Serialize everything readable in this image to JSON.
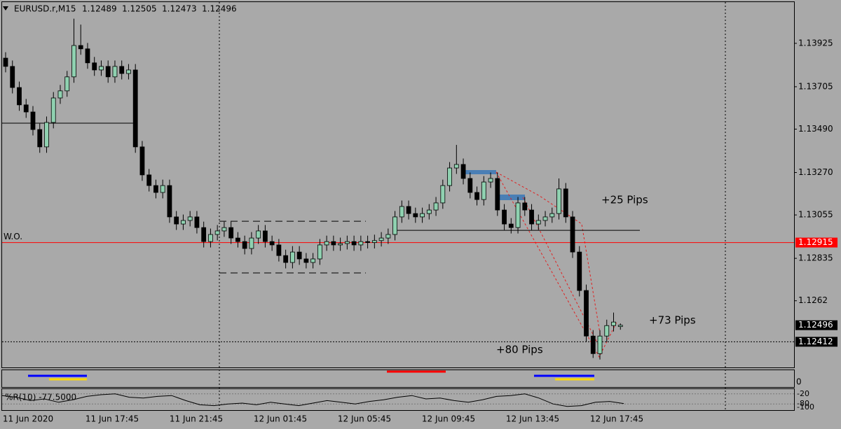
{
  "chart_data": {
    "type": "candlestick",
    "symbol": "EURUSD.r,M15",
    "open": [
      1.1385,
      1.13808,
      1.13701,
      1.13613,
      1.13577,
      1.13488,
      1.134,
      1.13524,
      1.13648,
      1.13684,
      1.13755,
      1.13914,
      1.13897,
      1.13826,
      1.1379,
      1.13808,
      1.13755,
      1.13808,
      1.13772,
      1.1379,
      1.134,
      1.13258,
      1.13204,
      1.13169,
      1.13204,
      1.13045,
      1.13009,
      1.13027,
      1.13045,
      1.12991,
      1.1292,
      1.12956,
      1.12974,
      1.12991,
      1.12938,
      1.1292,
      1.12885,
      1.12938,
      1.12974,
      1.1292,
      1.12903,
      1.12849,
      1.12814,
      1.12867,
      1.12832,
      1.12814,
      1.12832,
      1.12903,
      1.1292,
      1.12903,
      1.1291,
      1.1292,
      1.12903,
      1.1292,
      1.12915,
      1.12925,
      1.12938,
      1.12956,
      1.13045,
      1.13098,
      1.13062,
      1.13045,
      1.13062,
      1.1308,
      1.13116,
      1.13204,
      1.13293,
      1.13311,
      1.1324,
      1.13169,
      1.13133,
      1.13222,
      1.1324,
      1.1308,
      1.13009,
      1.12991,
      1.13116,
      1.1308,
      1.13009,
      1.13027,
      1.13045,
      1.13062,
      1.13187,
      1.13045,
      1.12867,
      1.12672,
      1.12441,
      1.12352,
      1.12441,
      1.12494,
      1.12489
    ],
    "high": [
      1.1388,
      1.13838,
      1.13731,
      1.13643,
      1.13607,
      1.13518,
      1.13554,
      1.13678,
      1.13714,
      1.13785,
      1.1405,
      1.1402,
      1.13927,
      1.13856,
      1.13838,
      1.13838,
      1.13838,
      1.13838,
      1.1382,
      1.1382,
      1.1343,
      1.13288,
      1.13234,
      1.13234,
      1.13234,
      1.13075,
      1.13057,
      1.13075,
      1.13075,
      1.13021,
      1.12986,
      1.13004,
      1.13021,
      1.13021,
      1.12968,
      1.1295,
      1.12968,
      1.13004,
      1.13004,
      1.1295,
      1.12933,
      1.12879,
      1.12897,
      1.12897,
      1.12862,
      1.12862,
      1.12933,
      1.1295,
      1.1295,
      1.1294,
      1.1295,
      1.1295,
      1.1295,
      1.1295,
      1.12955,
      1.12968,
      1.12986,
      1.13075,
      1.13128,
      1.13128,
      1.13092,
      1.13092,
      1.1311,
      1.13146,
      1.13234,
      1.13323,
      1.1341,
      1.13341,
      1.1327,
      1.13199,
      1.13252,
      1.1327,
      1.1327,
      1.1311,
      1.13039,
      1.13146,
      1.13146,
      1.1311,
      1.13057,
      1.13075,
      1.13092,
      1.1324,
      1.13217,
      1.13075,
      1.12897,
      1.12702,
      1.12471,
      1.12471,
      1.12524,
      1.1256,
      1.12505
    ],
    "low": [
      1.13778,
      1.13671,
      1.13583,
      1.13547,
      1.13458,
      1.1337,
      1.1337,
      1.13494,
      1.13618,
      1.13654,
      1.13725,
      1.13867,
      1.13796,
      1.1376,
      1.1376,
      1.13725,
      1.13725,
      1.13742,
      1.13742,
      1.1337,
      1.13228,
      1.13174,
      1.13139,
      1.13139,
      1.13015,
      1.12979,
      1.12979,
      1.12997,
      1.12961,
      1.1289,
      1.1289,
      1.12926,
      1.12944,
      1.12908,
      1.1289,
      1.12855,
      1.12855,
      1.12908,
      1.1289,
      1.12873,
      1.12819,
      1.12784,
      1.12784,
      1.12802,
      1.12784,
      1.12784,
      1.12802,
      1.12873,
      1.12873,
      1.12873,
      1.1288,
      1.12873,
      1.12873,
      1.12885,
      1.12885,
      1.12895,
      1.12908,
      1.12926,
      1.13015,
      1.13032,
      1.13015,
      1.13015,
      1.13032,
      1.1305,
      1.13086,
      1.13174,
      1.13263,
      1.1321,
      1.13139,
      1.13103,
      1.13103,
      1.13192,
      1.1305,
      1.12979,
      1.12961,
      1.12961,
      1.1305,
      1.12979,
      1.12979,
      1.12997,
      1.13015,
      1.13032,
      1.13015,
      1.12837,
      1.12642,
      1.12411,
      1.1233,
      1.12322,
      1.12411,
      1.12464,
      1.12473
    ],
    "close": [
      1.13808,
      1.13701,
      1.13613,
      1.13577,
      1.13488,
      1.134,
      1.13524,
      1.13648,
      1.13684,
      1.13755,
      1.13914,
      1.13897,
      1.13826,
      1.1379,
      1.13808,
      1.13755,
      1.13808,
      1.13772,
      1.1379,
      1.134,
      1.13258,
      1.13204,
      1.13169,
      1.13204,
      1.13045,
      1.13009,
      1.13027,
      1.13045,
      1.12991,
      1.1292,
      1.12956,
      1.12974,
      1.12991,
      1.12938,
      1.1292,
      1.12885,
      1.12938,
      1.12974,
      1.1292,
      1.12903,
      1.12849,
      1.12814,
      1.12867,
      1.12832,
      1.12814,
      1.12832,
      1.12903,
      1.1292,
      1.12903,
      1.1291,
      1.1292,
      1.12903,
      1.1292,
      1.12915,
      1.12925,
      1.12938,
      1.12956,
      1.13045,
      1.13098,
      1.13062,
      1.13045,
      1.13062,
      1.1308,
      1.13116,
      1.13204,
      1.13293,
      1.13311,
      1.1324,
      1.13169,
      1.13133,
      1.13222,
      1.1324,
      1.1308,
      1.13009,
      1.12991,
      1.13116,
      1.1308,
      1.13009,
      1.13027,
      1.13045,
      1.13062,
      1.13187,
      1.13045,
      1.12867,
      1.12672,
      1.12441,
      1.12352,
      1.12441,
      1.12494,
      1.12512,
      1.12496
    ],
    "up_color": "#8fd1b0",
    "down_color": "#000000",
    "ylim": [
      1.12282,
      1.14134
    ],
    "yticks": [
      1.13925,
      1.13705,
      {
        "value": 1.1349,
        "label": "1.13490"
      },
      {
        "value": 1.1327,
        "label": "1.13270"
      },
      1.13055,
      1.12835,
      1.1262
    ],
    "levels": [
      {
        "value": 1.12915,
        "color": "#ff0000",
        "style": "solid",
        "label": "W.O."
      },
      {
        "value": 1.12412,
        "color": "#000000",
        "style": "dotted"
      },
      {
        "value": 1.1352,
        "color": "#000000",
        "style": "solid"
      },
      {
        "value": 1.12977,
        "color": "#000000",
        "style": "solid"
      },
      {
        "value": 1.13023,
        "color": "#000000",
        "style": "dashed"
      },
      {
        "value": 1.12761,
        "color": "#000000",
        "style": "dashed"
      }
    ],
    "annotations": [
      "+25 Pips",
      "+73 Pips",
      "+80 Pips"
    ],
    "time_labels": [
      "11 Jun 2020",
      "11 Jun 17:45",
      "11 Jun 21:45",
      "12 Jun 01:45",
      "12 Jun 05:45",
      "12 Jun 09:45",
      "12 Jun 13:45",
      "12 Jun 17:45"
    ],
    "signal_pane": {
      "yticks": [
        0
      ]
    },
    "wpr": {
      "label": "%R(10) -77.5000",
      "ylim": [
        -100,
        0
      ],
      "yticks": [
        -20,
        -80,
        -100
      ],
      "values": [
        -30,
        -40,
        -60,
        -50,
        -70,
        -55,
        -35,
        -25,
        -20,
        -40,
        -45,
        -35,
        -30,
        -60,
        -85,
        -90,
        -80,
        -75,
        -85,
        -70,
        -80,
        -90,
        -75,
        -60,
        -70,
        -80,
        -65,
        -55,
        -40,
        -30,
        -50,
        -45,
        -60,
        -70,
        -55,
        -35,
        -30,
        -20,
        -45,
        -80,
        -95,
        -90,
        -70,
        -65,
        -77.5
      ]
    }
  }
}
